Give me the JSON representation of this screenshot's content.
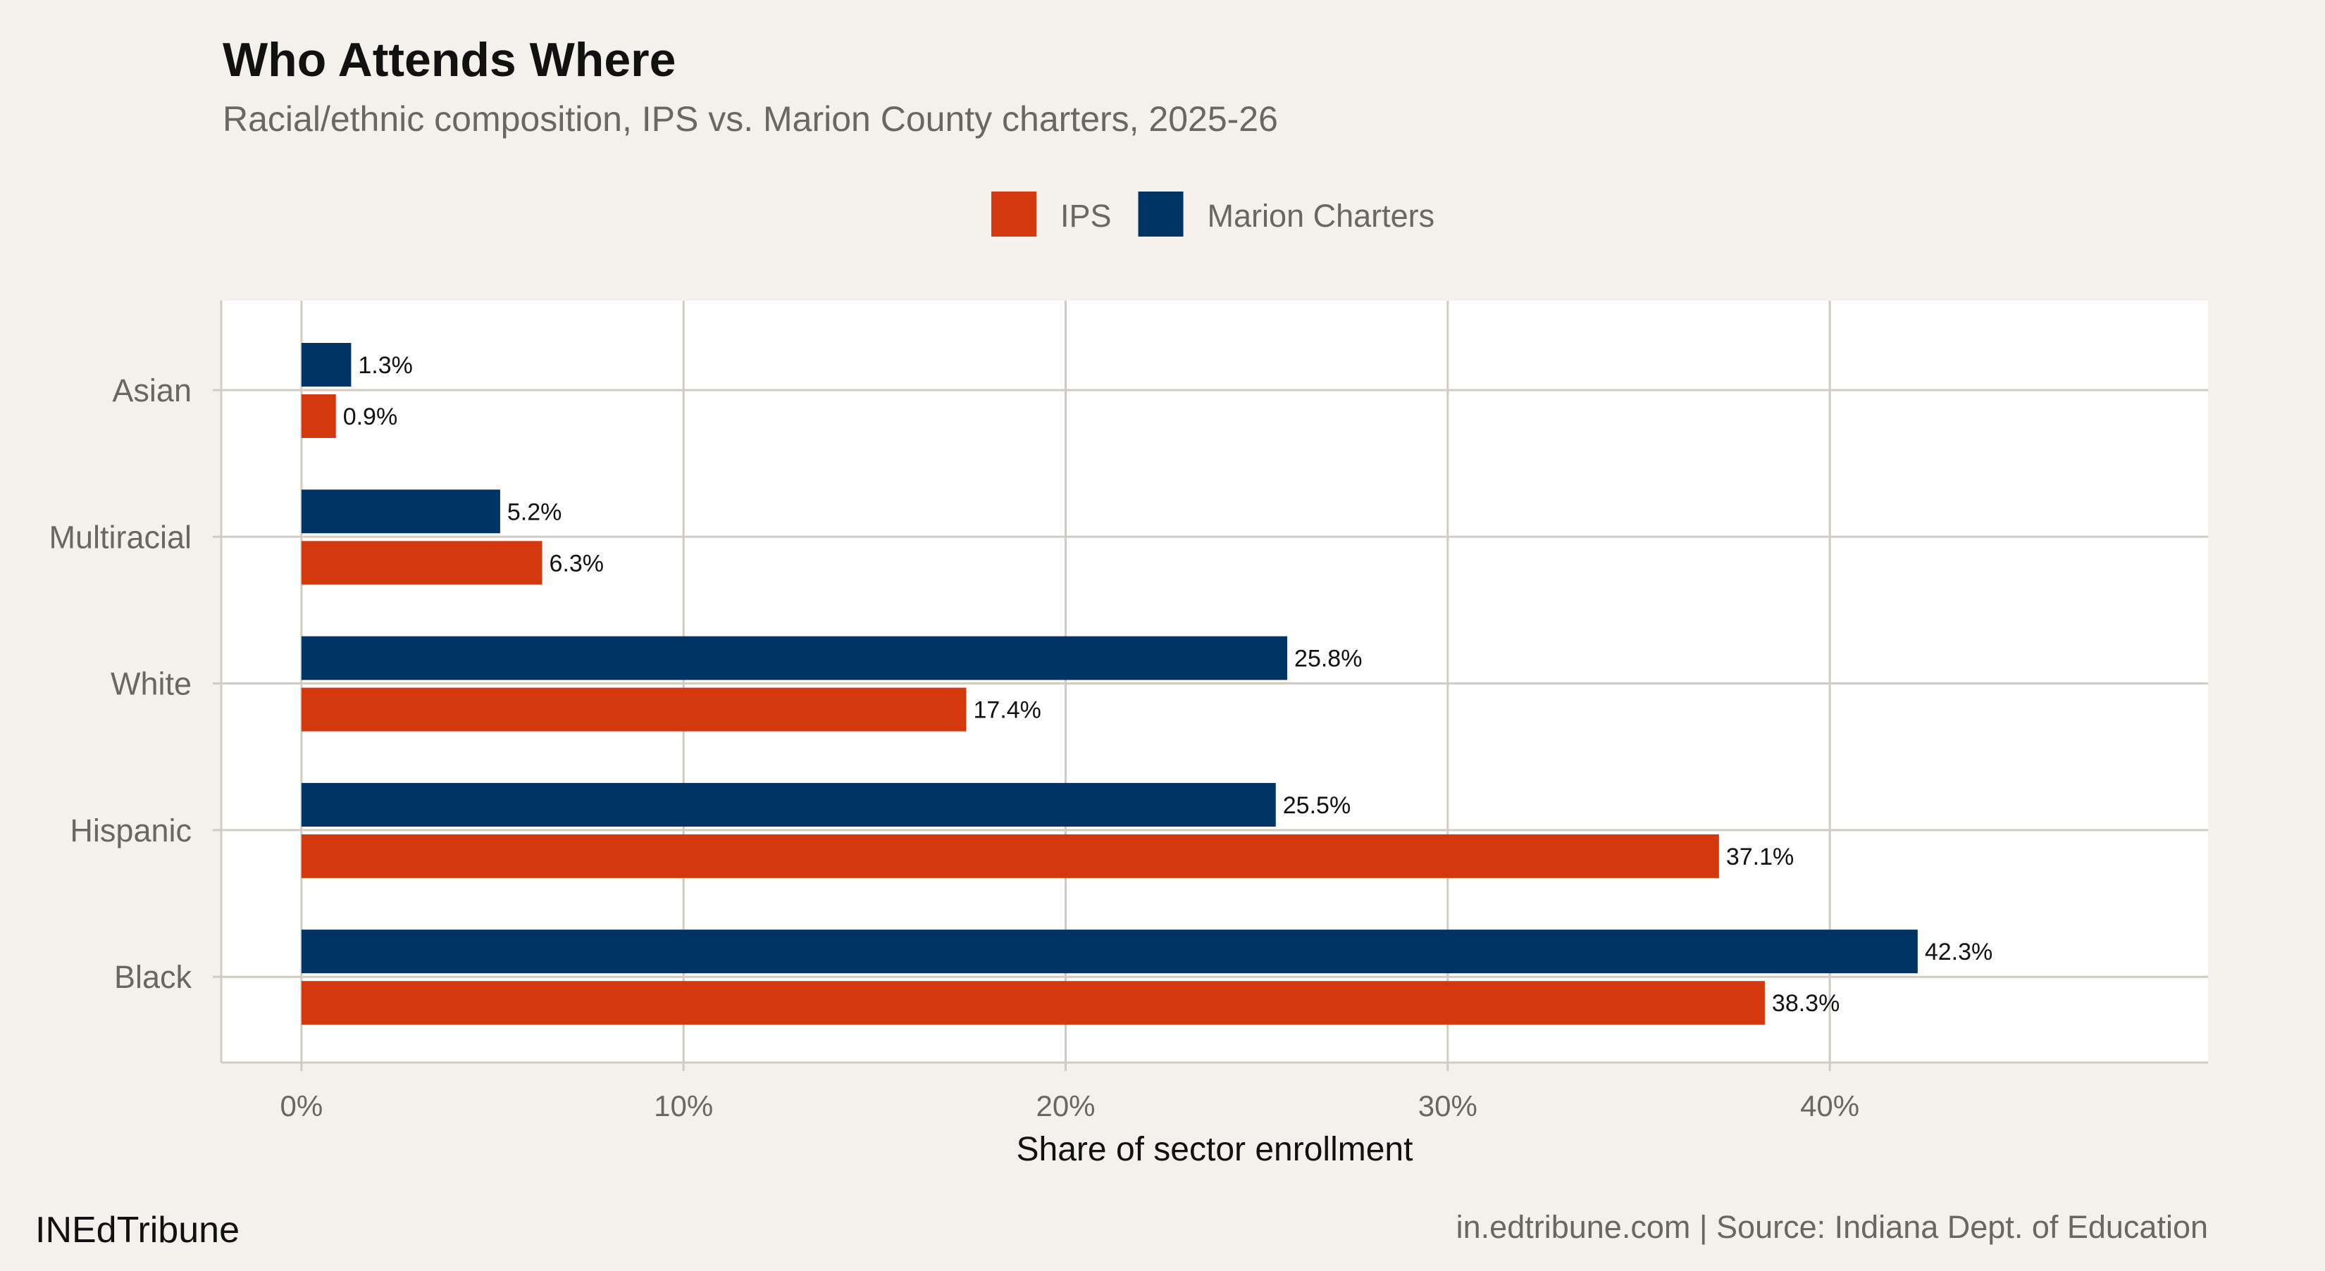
{
  "chart_data": {
    "type": "bar",
    "orientation": "horizontal",
    "title": "Who Attends Where",
    "subtitle": "Racial/ethnic composition, IPS vs. Marion County charters, 2025-26",
    "xlabel": "Share of sector enrollment",
    "ylabel": "",
    "categories": [
      "Asian",
      "Multiracial",
      "White",
      "Hispanic",
      "Black"
    ],
    "series": [
      {
        "name": "IPS",
        "color": "#D4380D",
        "values": [
          0.9,
          6.3,
          17.4,
          37.1,
          38.3
        ],
        "labels": [
          "0.9%",
          "6.3%",
          "17.4%",
          "37.1%",
          "38.3%"
        ]
      },
      {
        "name": "Marion Charters",
        "color": "#003366",
        "values": [
          1.3,
          5.2,
          25.8,
          25.5,
          42.3
        ],
        "labels": [
          "1.3%",
          "5.2%",
          "25.8%",
          "25.5%",
          "42.3%"
        ]
      }
    ],
    "xticks": [
      0,
      10,
      20,
      30,
      40
    ],
    "xtick_labels": [
      "0%",
      "10%",
      "20%",
      "30%",
      "40%"
    ],
    "xlim": [
      -2.1,
      49.9
    ],
    "grid": true,
    "legend_position": "top"
  },
  "footer": {
    "brand": "INEdTribune",
    "source": "in.edtribune.com | Source: Indiana Dept. of Education"
  },
  "colors": {
    "background": "#F4F1EC",
    "panel": "#FFFFFF",
    "grid": "#D0CBC3",
    "muted_text": "#6B6660"
  }
}
